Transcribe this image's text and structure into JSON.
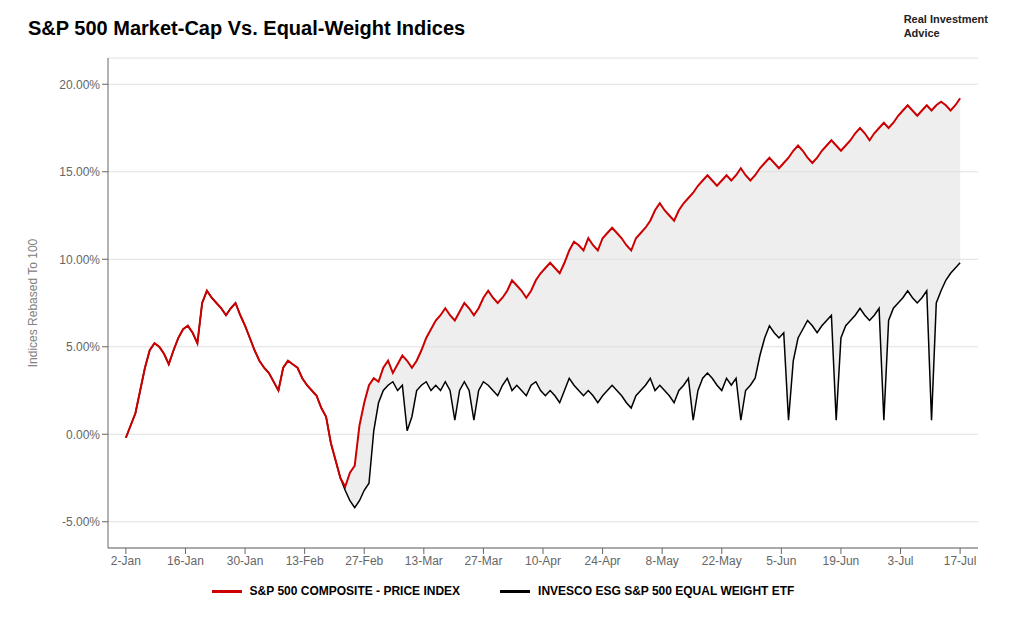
{
  "chart_data": {
    "type": "line",
    "title": "S&P 500 Market-Cap Vs. Equal-Weight Indices",
    "ylabel": "Indices Rebased To 100",
    "annotations": [
      {
        "text": "Real Investment\nAdvice"
      }
    ],
    "grid": "y",
    "ylim": [
      -0.065,
      0.215
    ],
    "yticks": [
      {
        "value": -0.05,
        "label": "-5.00%"
      },
      {
        "value": 0.0,
        "label": "0.00%"
      },
      {
        "value": 0.05,
        "label": "5.00%"
      },
      {
        "value": 0.1,
        "label": "10.00%"
      },
      {
        "value": 0.15,
        "label": "15.00%"
      },
      {
        "value": 0.2,
        "label": "20.00%"
      }
    ],
    "xlim": [
      -0.3,
      14.3
    ],
    "xticks": [
      {
        "value": 0,
        "label": "2-Jan"
      },
      {
        "value": 1,
        "label": "16-Jan"
      },
      {
        "value": 2,
        "label": "30-Jan"
      },
      {
        "value": 3,
        "label": "13-Feb"
      },
      {
        "value": 4,
        "label": "27-Feb"
      },
      {
        "value": 5,
        "label": "13-Mar"
      },
      {
        "value": 6,
        "label": "27-Mar"
      },
      {
        "value": 7,
        "label": "10-Apr"
      },
      {
        "value": 8,
        "label": "24-Apr"
      },
      {
        "value": 9,
        "label": "8-May"
      },
      {
        "value": 10,
        "label": "22-May"
      },
      {
        "value": 11,
        "label": "5-Jun"
      },
      {
        "value": 12,
        "label": "19-Jun"
      },
      {
        "value": 13,
        "label": "3-Jul"
      },
      {
        "value": 14,
        "label": "17-Jul"
      }
    ],
    "x": [
      0,
      0.08,
      0.16,
      0.24,
      0.32,
      0.4,
      0.48,
      0.56,
      0.64,
      0.72,
      0.8,
      0.88,
      0.96,
      1.04,
      1.12,
      1.2,
      1.28,
      1.36,
      1.44,
      1.52,
      1.6,
      1.68,
      1.76,
      1.84,
      1.92,
      2,
      2.08,
      2.16,
      2.24,
      2.32,
      2.4,
      2.48,
      2.56,
      2.64,
      2.72,
      2.8,
      2.88,
      2.96,
      3.04,
      3.12,
      3.2,
      3.28,
      3.36,
      3.44,
      3.52,
      3.6,
      3.68,
      3.76,
      3.84,
      3.92,
      4,
      4.08,
      4.16,
      4.24,
      4.32,
      4.4,
      4.48,
      4.56,
      4.64,
      4.72,
      4.8,
      4.88,
      4.96,
      5.04,
      5.12,
      5.2,
      5.28,
      5.36,
      5.44,
      5.52,
      5.6,
      5.68,
      5.76,
      5.84,
      5.92,
      6,
      6.08,
      6.16,
      6.24,
      6.32,
      6.4,
      6.48,
      6.56,
      6.64,
      6.72,
      6.8,
      6.88,
      6.96,
      7.04,
      7.12,
      7.2,
      7.28,
      7.36,
      7.44,
      7.52,
      7.6,
      7.68,
      7.76,
      7.84,
      7.92,
      8,
      8.08,
      8.16,
      8.24,
      8.32,
      8.4,
      8.48,
      8.56,
      8.64,
      8.72,
      8.8,
      8.88,
      8.96,
      9.04,
      9.12,
      9.2,
      9.28,
      9.36,
      9.44,
      9.52,
      9.6,
      9.68,
      9.76,
      9.84,
      9.92,
      10,
      10.08,
      10.16,
      10.24,
      10.32,
      10.4,
      10.48,
      10.56,
      10.64,
      10.72,
      10.8,
      10.88,
      10.96,
      11.04,
      11.12,
      11.2,
      11.28,
      11.36,
      11.44,
      11.52,
      11.6,
      11.68,
      11.76,
      11.84,
      11.92,
      12,
      12.08,
      12.16,
      12.24,
      12.32,
      12.4,
      12.48,
      12.56,
      12.64,
      12.72,
      12.8,
      12.88,
      12.96,
      13.04,
      13.12,
      13.2,
      13.28,
      13.36,
      13.44,
      13.52,
      13.6,
      13.68,
      13.76,
      13.84,
      13.92,
      14
    ],
    "series": [
      {
        "name": "S&P 500 COMPOSITE - PRICE INDEX",
        "color": "#cc0000",
        "values": [
          -0.002,
          0.005,
          0.012,
          0.025,
          0.038,
          0.048,
          0.052,
          0.05,
          0.046,
          0.04,
          0.048,
          0.055,
          0.06,
          0.062,
          0.058,
          0.052,
          0.075,
          0.082,
          0.078,
          0.075,
          0.072,
          0.068,
          0.072,
          0.075,
          0.068,
          0.062,
          0.055,
          0.048,
          0.042,
          0.038,
          0.035,
          0.03,
          0.025,
          0.038,
          0.042,
          0.04,
          0.038,
          0.032,
          0.028,
          0.025,
          0.022,
          0.015,
          0.01,
          -0.005,
          -0.015,
          -0.025,
          -0.03,
          -0.022,
          -0.018,
          0.005,
          0.018,
          0.028,
          0.032,
          0.03,
          0.038,
          0.042,
          0.035,
          0.04,
          0.045,
          0.042,
          0.038,
          0.042,
          0.048,
          0.055,
          0.06,
          0.065,
          0.068,
          0.072,
          0.068,
          0.065,
          0.07,
          0.075,
          0.072,
          0.068,
          0.072,
          0.078,
          0.082,
          0.078,
          0.075,
          0.078,
          0.082,
          0.088,
          0.085,
          0.082,
          0.078,
          0.082,
          0.088,
          0.092,
          0.095,
          0.098,
          0.095,
          0.092,
          0.098,
          0.105,
          0.11,
          0.108,
          0.105,
          0.112,
          0.108,
          0.105,
          0.112,
          0.115,
          0.118,
          0.115,
          0.112,
          0.108,
          0.105,
          0.112,
          0.115,
          0.118,
          0.122,
          0.128,
          0.132,
          0.128,
          0.125,
          0.122,
          0.128,
          0.132,
          0.135,
          0.138,
          0.142,
          0.145,
          0.148,
          0.145,
          0.142,
          0.145,
          0.148,
          0.145,
          0.148,
          0.152,
          0.148,
          0.145,
          0.148,
          0.152,
          0.155,
          0.158,
          0.155,
          0.152,
          0.155,
          0.158,
          0.162,
          0.165,
          0.162,
          0.158,
          0.155,
          0.158,
          0.162,
          0.165,
          0.168,
          0.165,
          0.162,
          0.165,
          0.168,
          0.172,
          0.175,
          0.172,
          0.168,
          0.172,
          0.175,
          0.178,
          0.175,
          0.178,
          0.182,
          0.185,
          0.188,
          0.185,
          0.182,
          0.185,
          0.188,
          0.185,
          0.188,
          0.19,
          0.188,
          0.185,
          0.188,
          0.192
        ]
      },
      {
        "name": "INVESCO ESG S&P 500 EQUAL WEIGHT ETF",
        "color": "#000000",
        "values": [
          -0.002,
          0.005,
          0.012,
          0.025,
          0.038,
          0.048,
          0.052,
          0.05,
          0.046,
          0.04,
          0.048,
          0.055,
          0.06,
          0.062,
          0.058,
          0.052,
          0.075,
          0.082,
          0.078,
          0.075,
          0.072,
          0.068,
          0.072,
          0.075,
          0.068,
          0.062,
          0.055,
          0.048,
          0.042,
          0.038,
          0.035,
          0.03,
          0.025,
          0.038,
          0.042,
          0.04,
          0.038,
          0.032,
          0.028,
          0.025,
          0.022,
          0.015,
          0.01,
          -0.005,
          -0.015,
          -0.025,
          -0.032,
          -0.038,
          -0.042,
          -0.038,
          -0.032,
          -0.028,
          0.002,
          0.018,
          0.025,
          0.028,
          0.03,
          0.025,
          0.028,
          0.002,
          0.01,
          0.025,
          0.028,
          0.03,
          0.025,
          0.028,
          0.025,
          0.03,
          0.025,
          0.008,
          0.025,
          0.03,
          0.025,
          0.008,
          0.025,
          0.03,
          0.028,
          0.025,
          0.022,
          0.028,
          0.032,
          0.025,
          0.028,
          0.025,
          0.022,
          0.028,
          0.03,
          0.025,
          0.022,
          0.025,
          0.022,
          0.018,
          0.025,
          0.032,
          0.028,
          0.025,
          0.022,
          0.025,
          0.022,
          0.018,
          0.022,
          0.025,
          0.028,
          0.025,
          0.022,
          0.018,
          0.015,
          0.022,
          0.025,
          0.028,
          0.032,
          0.025,
          0.028,
          0.025,
          0.022,
          0.018,
          0.025,
          0.028,
          0.032,
          0.008,
          0.025,
          0.032,
          0.035,
          0.032,
          0.028,
          0.025,
          0.032,
          0.028,
          0.032,
          0.008,
          0.025,
          0.028,
          0.032,
          0.045,
          0.055,
          0.062,
          0.058,
          0.055,
          0.058,
          0.008,
          0.042,
          0.055,
          0.06,
          0.065,
          0.062,
          0.058,
          0.062,
          0.065,
          0.068,
          0.008,
          0.055,
          0.062,
          0.065,
          0.068,
          0.072,
          0.068,
          0.065,
          0.068,
          0.072,
          0.008,
          0.065,
          0.072,
          0.075,
          0.078,
          0.082,
          0.078,
          0.075,
          0.078,
          0.082,
          0.008,
          0.075,
          0.082,
          0.088,
          0.092,
          0.095,
          0.098
        ]
      }
    ]
  }
}
